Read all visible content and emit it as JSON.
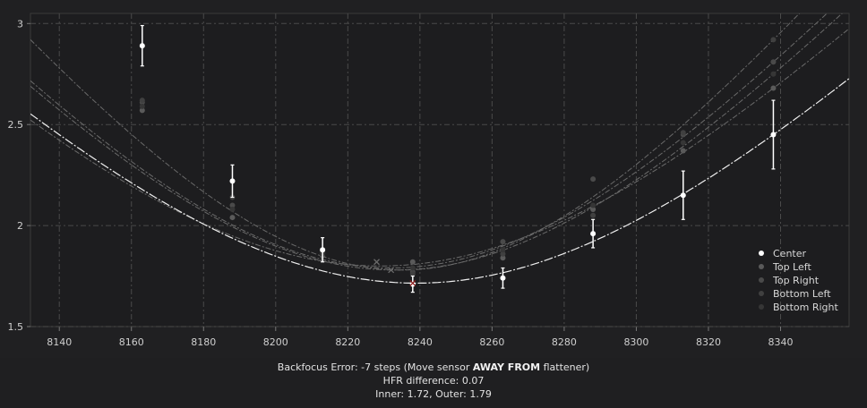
{
  "chart_data": {
    "type": "scatter",
    "xlim": [
      8132,
      8359
    ],
    "ylim": [
      1.5,
      3.05
    ],
    "x_ticks": [
      8140,
      8160,
      8180,
      8200,
      8220,
      8240,
      8260,
      8280,
      8300,
      8320,
      8340
    ],
    "y_ticks": [
      1.5,
      2,
      2.5,
      3
    ],
    "x_tick_labels": [
      "8140",
      "8160",
      "8180",
      "8200",
      "8220",
      "8240",
      "8260",
      "8280",
      "8300",
      "8320",
      "8340"
    ],
    "y_tick_labels": [
      "1.5",
      "2",
      "2.5",
      "3"
    ],
    "grid": true,
    "legend_position": "right",
    "series": [
      {
        "name": "Center",
        "color": "#ffffff",
        "x": [
          8163,
          8188,
          8213,
          8238,
          8263,
          8288,
          8313,
          8338
        ],
        "y": [
          2.89,
          2.22,
          1.88,
          1.71,
          1.74,
          1.96,
          2.15,
          2.45
        ],
        "err": [
          0.1,
          0.08,
          0.06,
          0.04,
          0.05,
          0.07,
          0.12,
          0.17
        ],
        "fit_min_x": 8239,
        "fit_min_y": 1.715
      },
      {
        "name": "Top Left",
        "color": "#5a5a5a",
        "x": [
          8163,
          8188,
          8213,
          8238,
          8263,
          8288,
          8313,
          8338
        ],
        "y": [
          2.57,
          2.04,
          1.85,
          1.82,
          1.84,
          2.08,
          2.37,
          2.68
        ],
        "fit_min_x": 8229,
        "fit_min_y": 1.8
      },
      {
        "name": "Top Right",
        "color": "#4a4a4a",
        "x": [
          8163,
          8188,
          8213,
          8238,
          8263,
          8288,
          8313,
          8338
        ],
        "y": [
          2.61,
          2.1,
          1.86,
          1.77,
          1.92,
          2.23,
          2.45,
          2.81
        ],
        "fit_min_x": 8232,
        "fit_min_y": 1.79
      },
      {
        "name": "Bottom Left",
        "color": "#404040",
        "x": [
          8163,
          8188,
          8213,
          8238,
          8263,
          8288,
          8313,
          8338
        ],
        "y": [
          2.62,
          2.14,
          1.87,
          1.76,
          1.86,
          2.05,
          2.46,
          2.92
        ],
        "fit_min_x": 8235,
        "fit_min_y": 1.78
      },
      {
        "name": "Bottom Right",
        "color": "#363636",
        "x": [
          8163,
          8188,
          8213,
          8238,
          8263,
          8288,
          8313,
          8338
        ],
        "y": [
          2.59,
          2.08,
          1.86,
          1.79,
          1.88,
          2.1,
          2.41,
          2.75
        ],
        "fit_min_x": 8233,
        "fit_min_y": 1.78
      }
    ],
    "markers_x": [
      8228,
      8232,
      8238
    ],
    "markers_y": [
      1.82,
      1.78,
      1.715
    ],
    "marker_colors": [
      "#6a6a6a",
      "#6a6a6a",
      "#8b1a1a"
    ]
  },
  "summary": {
    "line1_prefix": "Backfocus Error: -7 steps (Move sensor ",
    "line1_bold": "AWAY FROM",
    "line1_suffix": " flattener)",
    "line2": "HFR difference: 0.07",
    "line3": "Inner: 1.72, Outer: 1.79"
  }
}
